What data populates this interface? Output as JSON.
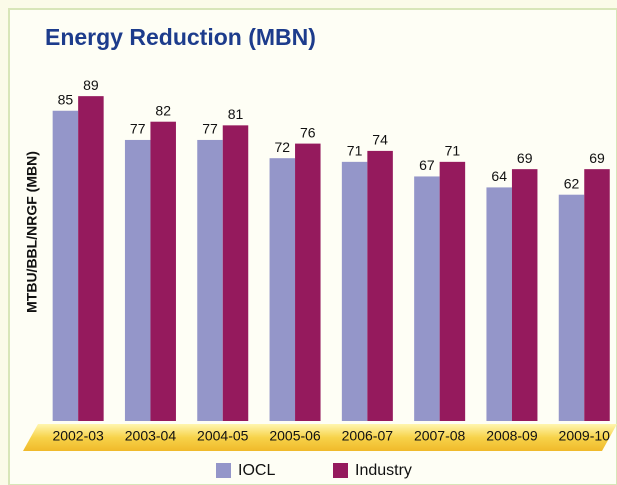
{
  "chart_data": {
    "type": "bar",
    "title": "Energy Reduction (MBN)",
    "y_label": "MTBU/BBL/NRGF (MBN)",
    "categories": [
      "2002-03",
      "2003-04",
      "2004-05",
      "2005-06",
      "2006-07",
      "2007-08",
      "2008-09",
      "2009-10"
    ],
    "series": [
      {
        "name": "IOCL",
        "color": "#9496c9",
        "values": [
          85,
          77,
          77,
          72,
          71,
          67,
          64,
          62
        ]
      },
      {
        "name": "Industry",
        "color": "#951a5d",
        "values": [
          89,
          82,
          81,
          76,
          74,
          71,
          69,
          69
        ]
      }
    ],
    "ylim": [
      0,
      90
    ]
  }
}
